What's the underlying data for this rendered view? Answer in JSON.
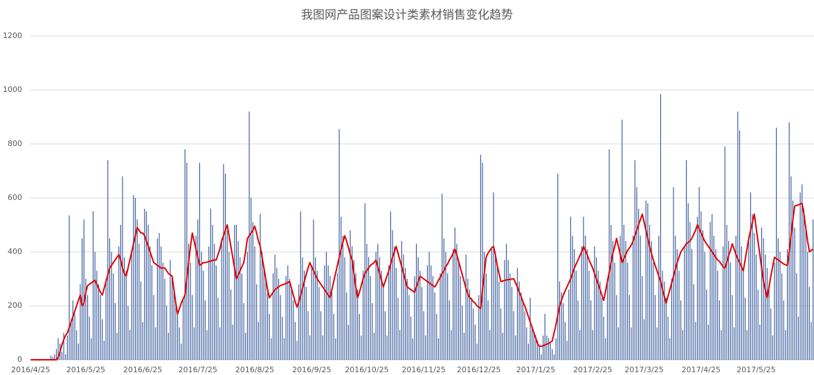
{
  "chart_data": {
    "type": "bar-line",
    "title": "我图网产品图案设计类素材销售变化趋势",
    "ylim": [
      0,
      1200
    ],
    "yticks": [
      0,
      200,
      400,
      600,
      800,
      1000,
      1200
    ],
    "grid": true,
    "categories": [
      "2016/4/25",
      null,
      null,
      null,
      null,
      null,
      null,
      null,
      null,
      null,
      null,
      null,
      null,
      null,
      null,
      null,
      null,
      null,
      null,
      null,
      null,
      null,
      null,
      null,
      null,
      null,
      null,
      null,
      null,
      null,
      "2016/5/25",
      null,
      null,
      null,
      null,
      null,
      null,
      null,
      null,
      null,
      null,
      null,
      null,
      null,
      null,
      null,
      null,
      null,
      null,
      null,
      null,
      null,
      null,
      null,
      null,
      null,
      null,
      null,
      null,
      null,
      null,
      "2016/6/25",
      null,
      null,
      null,
      null,
      null,
      null,
      null,
      null,
      null,
      null,
      null,
      null,
      null,
      null,
      null,
      null,
      null,
      null,
      null,
      null,
      null,
      null,
      null,
      null,
      null,
      null,
      null,
      null,
      null,
      "2016/7/25",
      null,
      null,
      null,
      null,
      null,
      null,
      null,
      null,
      null,
      null,
      null,
      null,
      null,
      null,
      null,
      null,
      null,
      null,
      null,
      null,
      null,
      null,
      null,
      null,
      null,
      null,
      null,
      null,
      null,
      null,
      "2016/8/25",
      null,
      null,
      null,
      null,
      null,
      null,
      null,
      null,
      null,
      null,
      null,
      null,
      null,
      null,
      null,
      null,
      null,
      null,
      null,
      null,
      null,
      null,
      null,
      null,
      null,
      null,
      null,
      null,
      null,
      null,
      "2016/9/25",
      null,
      null,
      null,
      null,
      null,
      null,
      null,
      null,
      null,
      null,
      null,
      null,
      null,
      null,
      null,
      null,
      null,
      null,
      null,
      null,
      null,
      null,
      null,
      null,
      null,
      null,
      null,
      null,
      null,
      "2016/10/25",
      null,
      null,
      null,
      null,
      null,
      null,
      null,
      null,
      null,
      null,
      null,
      null,
      null,
      null,
      null,
      null,
      null,
      null,
      null,
      null,
      null,
      null,
      null,
      null,
      null,
      null,
      null,
      null,
      null,
      null,
      "2016/11/25",
      null,
      null,
      null,
      null,
      null,
      null,
      null,
      null,
      null,
      null,
      null,
      null,
      null,
      null,
      null,
      null,
      null,
      null,
      null,
      null,
      null,
      null,
      null,
      null,
      null,
      null,
      null,
      null,
      null,
      "2016/12/25",
      null,
      null,
      null,
      null,
      null,
      null,
      null,
      null,
      null,
      null,
      null,
      null,
      null,
      null,
      null,
      null,
      null,
      null,
      null,
      null,
      null,
      null,
      null,
      null,
      null,
      null,
      null,
      null,
      null,
      null,
      "2017/1/25",
      null,
      null,
      null,
      null,
      null,
      null,
      null,
      null,
      null,
      null,
      null,
      null,
      null,
      null,
      null,
      null,
      null,
      null,
      null,
      null,
      null,
      null,
      null,
      null,
      null,
      null,
      null,
      null,
      null,
      null,
      "2017/2/25",
      null,
      null,
      null,
      null,
      null,
      null,
      null,
      null,
      null,
      null,
      null,
      null,
      null,
      null,
      null,
      null,
      null,
      null,
      null,
      null,
      null,
      null,
      null,
      null,
      null,
      null,
      null,
      "2017/3/25",
      null,
      null,
      null,
      null,
      null,
      null,
      null,
      null,
      null,
      null,
      null,
      null,
      null,
      null,
      null,
      null,
      null,
      null,
      null,
      null,
      null,
      null,
      null,
      null,
      null,
      null,
      null,
      null,
      null,
      null,
      "2017/4/25",
      null,
      null,
      null,
      null,
      null,
      null,
      null,
      null,
      null,
      null,
      null,
      null,
      null,
      null,
      null,
      null,
      null,
      null,
      null,
      null,
      null,
      null,
      null,
      null,
      null,
      null,
      null,
      null,
      null,
      "2017/5/25",
      null,
      null,
      null,
      null,
      null,
      null,
      null,
      null,
      null,
      null,
      null,
      null,
      null,
      null,
      null,
      null,
      null,
      null,
      null,
      null,
      null,
      null,
      null,
      null,
      null,
      null,
      null,
      null,
      null,
      null,
      null
    ],
    "series": [
      {
        "type": "bar",
        "color": "#3d5f9e",
        "values": [
          0,
          0,
          0,
          0,
          0,
          0,
          0,
          0,
          0,
          0,
          0,
          15,
          10,
          20,
          40,
          80,
          60,
          30,
          100,
          20,
          90,
          535,
          150,
          220,
          170,
          110,
          60,
          280,
          450,
          520,
          300,
          240,
          160,
          80,
          550,
          400,
          330,
          280,
          240,
          150,
          70,
          300,
          740,
          450,
          400,
          320,
          210,
          100,
          420,
          500,
          680,
          380,
          330,
          200,
          110,
          400,
          610,
          600,
          520,
          430,
          290,
          140,
          560,
          550,
          500,
          420,
          350,
          240,
          120,
          450,
          470,
          420,
          360,
          300,
          200,
          100,
          370,
          300,
          250,
          220,
          180,
          120,
          60,
          230,
          780,
          730,
          430,
          360,
          240,
          120,
          460,
          520,
          730,
          400,
          330,
          220,
          110,
          420,
          560,
          500,
          430,
          350,
          230,
          120,
          450,
          725,
          690,
          480,
          400,
          260,
          130,
          500,
          500,
          440,
          380,
          320,
          210,
          100,
          400,
          920,
          600,
          510,
          420,
          280,
          140,
          540,
          400,
          350,
          300,
          250,
          170,
          80,
          320,
          390,
          340,
          300,
          240,
          160,
          80,
          310,
          350,
          300,
          260,
          220,
          140,
          70,
          280,
          550,
          380,
          330,
          270,
          180,
          90,
          350,
          520,
          380,
          330,
          270,
          180,
          90,
          350,
          400,
          350,
          310,
          250,
          170,
          80,
          320,
          855,
          530,
          460,
          380,
          250,
          130,
          480,
          420,
          370,
          320,
          260,
          170,
          90,
          330,
          580,
          430,
          380,
          310,
          210,
          100,
          400,
          430,
          380,
          330,
          270,
          180,
          90,
          350,
          550,
          480,
          420,
          340,
          230,
          110,
          440,
          390,
          340,
          300,
          240,
          160,
          80,
          310,
          430,
          380,
          330,
          270,
          180,
          90,
          350,
          400,
          350,
          310,
          250,
          170,
          80,
          320,
          615,
          450,
          400,
          320,
          220,
          110,
          410,
          490,
          430,
          370,
          310,
          200,
          100,
          390,
          300,
          260,
          230,
          190,
          130,
          60,
          240,
          760,
          730,
          400,
          320,
          220,
          110,
          410,
          620,
          400,
          350,
          290,
          190,
          100,
          370,
          430,
          370,
          320,
          270,
          180,
          90,
          340,
          290,
          250,
          220,
          180,
          120,
          60,
          230,
          120,
          100,
          90,
          70,
          50,
          20,
          90,
          170,
          90,
          80,
          60,
          40,
          20,
          80,
          690,
          290,
          250,
          210,
          140,
          70,
          260,
          530,
          460,
          410,
          330,
          220,
          110,
          420,
          530,
          460,
          410,
          330,
          220,
          110,
          420,
          380,
          330,
          290,
          230,
          160,
          80,
          300,
          780,
          500,
          440,
          360,
          240,
          120,
          460,
          890,
          500,
          440,
          360,
          240,
          120,
          460,
          740,
          640,
          560,
          460,
          310,
          150,
          590,
          580,
          500,
          440,
          360,
          240,
          120,
          460,
          985,
          330,
          290,
          230,
          160,
          80,
          300,
          640,
          460,
          410,
          330,
          220,
          110,
          420,
          740,
          580,
          510,
          410,
          280,
          140,
          530,
          640,
          550,
          480,
          400,
          260,
          130,
          510,
          540,
          460,
          410,
          330,
          220,
          110,
          420,
          790,
          500,
          440,
          360,
          240,
          120,
          460,
          920,
          850,
          420,
          340,
          230,
          110,
          440,
          620,
          540,
          470,
          390,
          260,
          130,
          490,
          450,
          390,
          340,
          280,
          190,
          90,
          360,
          860,
          450,
          400,
          320,
          220,
          110,
          410,
          880,
          680,
          590,
          490,
          320,
          160,
          620,
          650,
          560,
          500,
          400,
          270,
          140,
          520
        ]
      },
      {
        "type": "line",
        "color": "#e00000",
        "values": [
          0,
          0,
          0,
          0,
          0,
          0,
          0,
          0,
          0,
          0,
          0,
          0,
          0,
          0,
          0,
          10,
          30,
          55,
          75,
          90,
          100,
          120,
          140,
          160,
          180,
          200,
          220,
          240,
          200,
          210,
          250,
          275,
          280,
          285,
          290,
          295,
          280,
          265,
          250,
          240,
          265,
          290,
          315,
          340,
          350,
          360,
          370,
          380,
          390,
          370,
          340,
          320,
          310,
          340,
          370,
          400,
          430,
          460,
          490,
          480,
          470,
          470,
          460,
          440,
          420,
          400,
          380,
          360,
          355,
          350,
          345,
          340,
          340,
          340,
          330,
          320,
          315,
          310,
          260,
          210,
          170,
          190,
          210,
          225,
          240,
          300,
          360,
          420,
          470,
          440,
          410,
          380,
          350,
          355,
          360,
          360,
          362,
          364,
          366,
          368,
          370,
          370,
          390,
          410,
          440,
          460,
          480,
          500,
          460,
          420,
          380,
          340,
          300,
          315,
          330,
          345,
          360,
          400,
          450,
          460,
          470,
          480,
          495,
          470,
          440,
          420,
          380,
          340,
          300,
          260,
          230,
          240,
          250,
          260,
          265,
          270,
          275,
          278,
          280,
          283,
          286,
          290,
          265,
          240,
          215,
          195,
          215,
          240,
          265,
          290,
          315,
          340,
          360,
          345,
          330,
          315,
          300,
          290,
          280,
          270,
          260,
          250,
          240,
          230,
          260,
          290,
          320,
          350,
          380,
          410,
          435,
          460,
          440,
          415,
          390,
          370,
          320,
          270,
          230,
          250,
          275,
          300,
          320,
          330,
          340,
          350,
          355,
          360,
          370,
          345,
          320,
          295,
          270,
          290,
          310,
          330,
          355,
          380,
          400,
          420,
          395,
          370,
          345,
          320,
          295,
          270,
          265,
          260,
          255,
          250,
          270,
          290,
          310,
          305,
          300,
          295,
          290,
          285,
          280,
          275,
          270,
          280,
          295,
          305,
          320,
          330,
          345,
          355,
          370,
          380,
          395,
          410,
          390,
          365,
          340,
          315,
          290,
          265,
          245,
          230,
          225,
          215,
          210,
          200,
          195,
          190,
          260,
          320,
          380,
          395,
          405,
          415,
          420,
          390,
          350,
          320,
          290,
          292,
          294,
          296,
          297,
          298,
          299,
          300,
          285,
          270,
          250,
          235,
          215,
          200,
          180,
          160,
          140,
          120,
          100,
          80,
          60,
          50,
          50,
          52,
          55,
          58,
          60,
          65,
          70,
          100,
          130,
          165,
          200,
          220,
          240,
          255,
          270,
          285,
          300,
          320,
          340,
          355,
          370,
          385,
          400,
          420,
          405,
          390,
          370,
          355,
          340,
          320,
          300,
          280,
          260,
          240,
          220,
          255,
          290,
          325,
          360,
          395,
          420,
          450,
          420,
          390,
          360,
          375,
          390,
          405,
          415,
          425,
          440,
          460,
          480,
          500,
          520,
          540,
          510,
          480,
          450,
          420,
          395,
          370,
          350,
          330,
          310,
          290,
          260,
          235,
          210,
          235,
          260,
          285,
          310,
          335,
          360,
          380,
          400,
          410,
          420,
          430,
          435,
          440,
          450,
          465,
          480,
          500,
          485,
          470,
          455,
          440,
          430,
          420,
          410,
          400,
          390,
          380,
          370,
          365,
          355,
          345,
          340,
          360,
          385,
          405,
          430,
          410,
          390,
          375,
          360,
          345,
          330,
          370,
          410,
          450,
          480,
          510,
          540,
          490,
          440,
          390,
          340,
          290,
          260,
          230,
          270,
          310,
          345,
          380,
          375,
          370,
          365,
          360,
          355,
          352,
          350,
          400,
          460,
          520,
          570,
          572,
          574,
          577,
          580,
          540,
          490,
          440,
          400,
          405,
          410
        ]
      }
    ]
  }
}
